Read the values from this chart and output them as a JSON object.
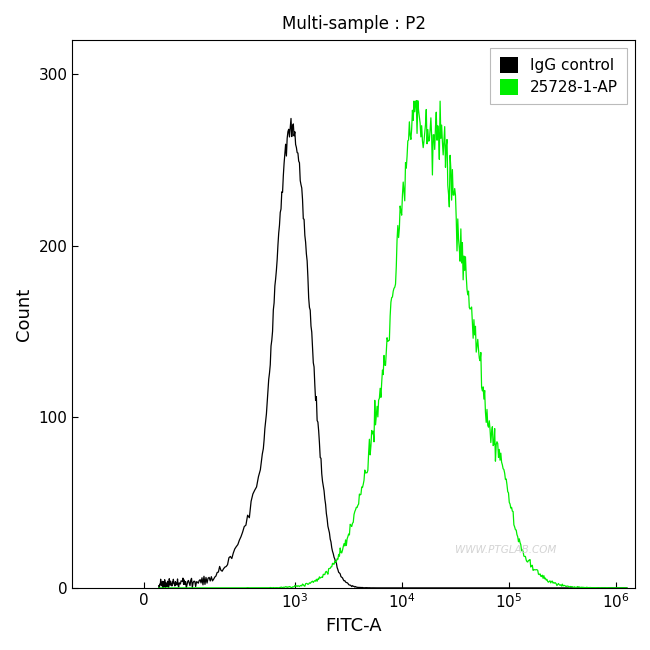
{
  "title": "Multi-sample : P2",
  "xlabel": "FITC-A",
  "ylabel": "Count",
  "ylim": [
    0,
    320
  ],
  "yticks": [
    0,
    100,
    200,
    300
  ],
  "background_color": "#ffffff",
  "plot_bg_color": "#ffffff",
  "legend_labels": [
    "IgG control",
    "25728-1-AP"
  ],
  "legend_colors": [
    "#000000",
    "#00ee00"
  ],
  "watermark": "WWW.PTGLAB.COM",
  "black_peak_log": 2.97,
  "black_peak_height": 268,
  "black_sigma": 0.17,
  "black_noise_sigma": 0.012,
  "green_peak_log": 4.28,
  "green_peak_height": 258,
  "green_sigma": 0.38,
  "green_noise_sigma": 0.018,
  "linthresh": 500,
  "xlim_left": -300,
  "xlim_right": 1500000,
  "xtick_positions": [
    0,
    1000,
    10000,
    100000,
    1000000
  ],
  "xtick_labels": [
    "0",
    "10$^3$",
    "10$^4$",
    "10$^5$",
    "10$^6$"
  ]
}
